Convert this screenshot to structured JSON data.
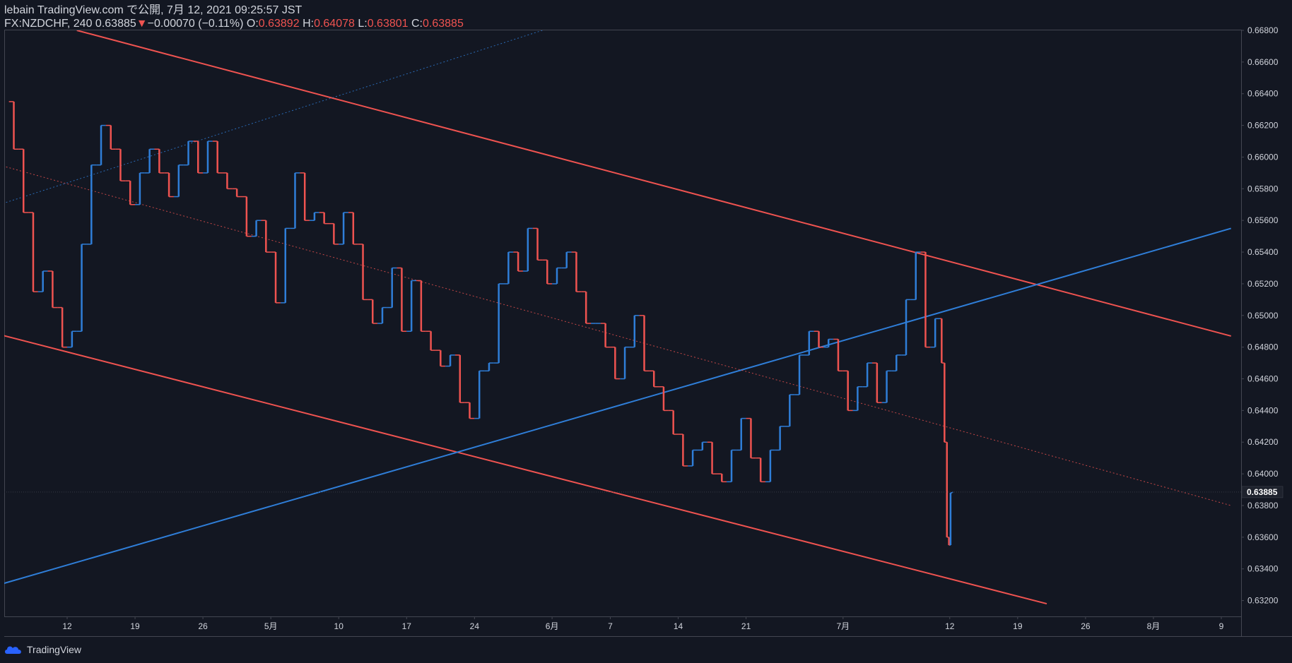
{
  "header": {
    "publish_line": "lebain TradingView.com で公開, 7月 12, 2021 09:25:57 JST",
    "symbol": "FX:NZDCHF, 240",
    "last": "0.63885",
    "change_arrow": "▼",
    "change": "−0.00070 (−0.11%)",
    "o_label": "O:",
    "o_value": "0.63892",
    "h_label": "H:",
    "h_value": "0.64078",
    "l_label": "L:",
    "l_value": "0.63801",
    "c_label": "C:",
    "c_value": "0.63885"
  },
  "footer": {
    "brand": "TradingView"
  },
  "colors": {
    "background": "#131722",
    "up": "#2f7ed8",
    "down": "#ef5350",
    "axis_text": "#d1d4dc",
    "grid_border": "#434651"
  },
  "chart_data": {
    "type": "candlestick",
    "title": "",
    "xlabel": "",
    "ylabel": "",
    "grid": false,
    "ylim": [
      0.631,
      0.668
    ],
    "y_ticks": [
      "0.66800",
      "0.66600",
      "0.66400",
      "0.66200",
      "0.66000",
      "0.65800",
      "0.65600",
      "0.65400",
      "0.65200",
      "0.65000",
      "0.64800",
      "0.64600",
      "0.64400",
      "0.64200",
      "0.64000",
      "0.63800",
      "0.63600",
      "0.63400",
      "0.63200"
    ],
    "x_ticks": [
      {
        "label": "12",
        "date": "2021-04-12"
      },
      {
        "label": "19",
        "date": "2021-04-19"
      },
      {
        "label": "26",
        "date": "2021-04-26"
      },
      {
        "label": "5月",
        "date": "2021-05-03"
      },
      {
        "label": "10",
        "date": "2021-05-10"
      },
      {
        "label": "17",
        "date": "2021-05-17"
      },
      {
        "label": "24",
        "date": "2021-05-24"
      },
      {
        "label": "6月",
        "date": "2021-06-01"
      },
      {
        "label": "7",
        "date": "2021-06-07"
      },
      {
        "label": "14",
        "date": "2021-06-14"
      },
      {
        "label": "21",
        "date": "2021-06-21"
      },
      {
        "label": "7月",
        "date": "2021-07-01"
      },
      {
        "label": "12",
        "date": "2021-07-12"
      },
      {
        "label": "19",
        "date": "2021-07-19"
      },
      {
        "label": "26",
        "date": "2021-07-26"
      },
      {
        "label": "8月",
        "date": "2021-08-02"
      },
      {
        "label": "9",
        "date": "2021-08-09"
      }
    ],
    "current_price": "0.63885",
    "series": [
      {
        "style": "close-path",
        "points": [
          [
            "2021-04-06",
            0.6635
          ],
          [
            "2021-04-07",
            0.6605
          ],
          [
            "2021-04-08",
            0.6565
          ],
          [
            "2021-04-09",
            0.6515
          ],
          [
            "2021-04-10",
            0.6528
          ],
          [
            "2021-04-11",
            0.6505
          ],
          [
            "2021-04-12",
            0.648
          ],
          [
            "2021-04-13",
            0.649
          ],
          [
            "2021-04-14",
            0.6545
          ],
          [
            "2021-04-15",
            0.6595
          ],
          [
            "2021-04-16",
            0.662
          ],
          [
            "2021-04-17",
            0.6605
          ],
          [
            "2021-04-18",
            0.6585
          ],
          [
            "2021-04-19",
            0.657
          ],
          [
            "2021-04-20",
            0.659
          ],
          [
            "2021-04-21",
            0.6605
          ],
          [
            "2021-04-22",
            0.659
          ],
          [
            "2021-04-23",
            0.6575
          ],
          [
            "2021-04-24",
            0.6595
          ],
          [
            "2021-04-25",
            0.661
          ],
          [
            "2021-04-26",
            0.659
          ],
          [
            "2021-04-27",
            0.661
          ],
          [
            "2021-04-28",
            0.659
          ],
          [
            "2021-04-29",
            0.658
          ],
          [
            "2021-04-30",
            0.6575
          ],
          [
            "2021-05-01",
            0.655
          ],
          [
            "2021-05-02",
            0.656
          ],
          [
            "2021-05-03",
            0.654
          ],
          [
            "2021-05-04",
            0.6508
          ],
          [
            "2021-05-05",
            0.6555
          ],
          [
            "2021-05-06",
            0.659
          ],
          [
            "2021-05-07",
            0.656
          ],
          [
            "2021-05-08",
            0.6565
          ],
          [
            "2021-05-09",
            0.6558
          ],
          [
            "2021-05-10",
            0.6545
          ],
          [
            "2021-05-11",
            0.6565
          ],
          [
            "2021-05-12",
            0.6545
          ],
          [
            "2021-05-13",
            0.651
          ],
          [
            "2021-05-14",
            0.6495
          ],
          [
            "2021-05-15",
            0.6505
          ],
          [
            "2021-05-16",
            0.653
          ],
          [
            "2021-05-17",
            0.649
          ],
          [
            "2021-05-18",
            0.6522
          ],
          [
            "2021-05-19",
            0.649
          ],
          [
            "2021-05-20",
            0.6478
          ],
          [
            "2021-05-21",
            0.6468
          ],
          [
            "2021-05-22",
            0.6475
          ],
          [
            "2021-05-23",
            0.6445
          ],
          [
            "2021-05-24",
            0.6435
          ],
          [
            "2021-05-25",
            0.6465
          ],
          [
            "2021-05-26",
            0.647
          ],
          [
            "2021-05-27",
            0.652
          ],
          [
            "2021-05-28",
            0.654
          ],
          [
            "2021-05-29",
            0.6528
          ],
          [
            "2021-05-30",
            0.6555
          ],
          [
            "2021-05-31",
            0.6535
          ],
          [
            "2021-06-01",
            0.652
          ],
          [
            "2021-06-02",
            0.653
          ],
          [
            "2021-06-03",
            0.654
          ],
          [
            "2021-06-04",
            0.6515
          ],
          [
            "2021-06-05",
            0.6495
          ],
          [
            "2021-06-06",
            0.6495
          ],
          [
            "2021-06-07",
            0.648
          ],
          [
            "2021-06-08",
            0.646
          ],
          [
            "2021-06-09",
            0.648
          ],
          [
            "2021-06-10",
            0.65
          ],
          [
            "2021-06-11",
            0.6465
          ],
          [
            "2021-06-12",
            0.6455
          ],
          [
            "2021-06-13",
            0.644
          ],
          [
            "2021-06-14",
            0.6425
          ],
          [
            "2021-06-15",
            0.6405
          ],
          [
            "2021-06-16",
            0.6415
          ],
          [
            "2021-06-17",
            0.642
          ],
          [
            "2021-06-18",
            0.64
          ],
          [
            "2021-06-19",
            0.6395
          ],
          [
            "2021-06-20",
            0.6415
          ],
          [
            "2021-06-21",
            0.6435
          ],
          [
            "2021-06-22",
            0.641
          ],
          [
            "2021-06-23",
            0.6395
          ],
          [
            "2021-06-24",
            0.6415
          ],
          [
            "2021-06-25",
            0.643
          ],
          [
            "2021-06-26",
            0.645
          ],
          [
            "2021-06-27",
            0.6475
          ],
          [
            "2021-06-28",
            0.649
          ],
          [
            "2021-06-29",
            0.648
          ],
          [
            "2021-06-30",
            0.6485
          ],
          [
            "2021-07-01",
            0.6465
          ],
          [
            "2021-07-02",
            0.644
          ],
          [
            "2021-07-03",
            0.6455
          ],
          [
            "2021-07-04",
            0.647
          ],
          [
            "2021-07-05",
            0.6445
          ],
          [
            "2021-07-06",
            0.6465
          ],
          [
            "2021-07-07",
            0.6475
          ],
          [
            "2021-07-08",
            0.651
          ],
          [
            "2021-07-09",
            0.654
          ],
          [
            "2021-07-10",
            0.648
          ],
          [
            "2021-07-11",
            0.6498
          ],
          [
            "2021-07-11T08",
            0.647
          ],
          [
            "2021-07-11T14",
            0.642
          ],
          [
            "2021-07-11T20",
            0.636
          ],
          [
            "2021-07-12",
            0.6355
          ],
          [
            "2021-07-12T04",
            0.6388
          ],
          [
            "2021-07-12T08",
            0.63885
          ]
        ]
      }
    ],
    "trendlines": [
      {
        "name": "",
        "color": "#ef5350",
        "style": "solid",
        "p1": [
          "2021-04-13",
          0.668
        ],
        "p2": [
          "2021-08-10",
          0.6487
        ]
      },
      {
        "name": "",
        "color": "#ef5350",
        "style": "solid",
        "p1": [
          "2021-04-05",
          0.6488
        ],
        "p2": [
          "2021-07-22",
          0.6318
        ]
      },
      {
        "name": "",
        "color": "#2f7ed8",
        "style": "solid",
        "p1": [
          "2021-04-05",
          0.633
        ],
        "p2": [
          "2021-08-10",
          0.6555
        ]
      },
      {
        "name": "",
        "color": "#ef5350",
        "style": "dotted",
        "p1": [
          "2021-04-05",
          0.6595
        ],
        "p2": [
          "2021-08-10",
          0.638
        ]
      },
      {
        "name": "",
        "color": "#2f7ed8",
        "style": "dotted",
        "p1": [
          "2021-04-05",
          0.657
        ],
        "p2": [
          "2021-05-31",
          0.668
        ]
      }
    ]
  }
}
